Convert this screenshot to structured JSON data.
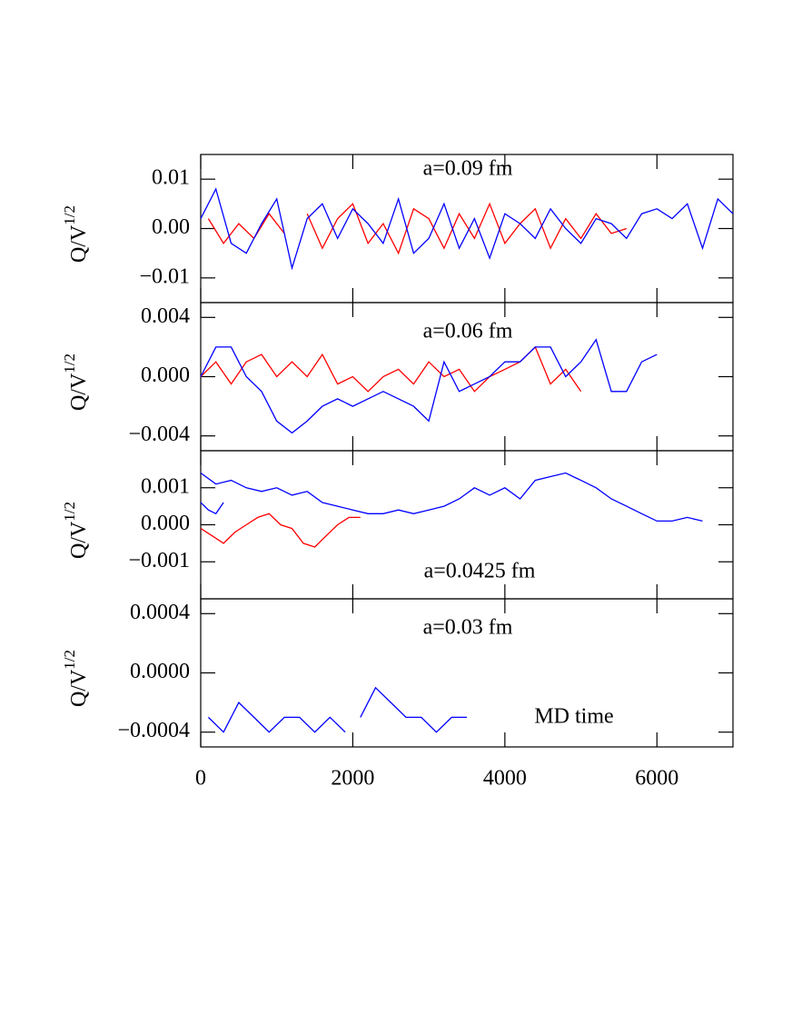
{
  "chart_data": [
    {
      "type": "line",
      "annotation": "a=0.09 fm",
      "ylabel": {
        "base": "Q/V",
        "sup": "1/2"
      },
      "xlim": [
        0,
        7000
      ],
      "xticks": [
        0,
        2000,
        4000,
        6000
      ],
      "ylim": [
        -0.015,
        0.015
      ],
      "yticks": [
        0.01,
        {
          "value": 0,
          "label": "0.00"
        },
        {
          "value": -0.01,
          "label": "−0.01"
        }
      ],
      "series": [
        {
          "color": "#ff0000",
          "x": [
            100,
            300,
            500,
            700,
            900,
            1100,
            1250,
            1400,
            1600,
            1800,
            2000,
            2200,
            2400,
            2600,
            2800,
            3000,
            3200,
            3400,
            3600,
            3800,
            4000,
            4200,
            4400,
            4600,
            4800,
            5000,
            5200,
            5400,
            5600
          ],
          "values": [
            0.002,
            -0.003,
            0.001,
            -0.002,
            0.003,
            -0.001,
            null,
            0.003,
            -0.004,
            0.002,
            0.005,
            -0.003,
            0.001,
            -0.005,
            0.004,
            0.002,
            -0.004,
            0.003,
            -0.002,
            0.005,
            -0.003,
            0.001,
            0.004,
            -0.004,
            0.002,
            -0.002,
            0.003,
            -0.001,
            0.0
          ]
        },
        {
          "color": "#0000ff",
          "x": [
            0,
            200,
            400,
            600,
            800,
            1000,
            1200,
            1400,
            1600,
            1800,
            2000,
            2200,
            2400,
            2600,
            2800,
            3000,
            3200,
            3400,
            3600,
            3800,
            4000,
            4200,
            4400,
            4600,
            4800,
            5000,
            5200,
            5400,
            5600,
            5800,
            6000,
            6200,
            6400,
            6600,
            6800,
            7000
          ],
          "values": [
            0.002,
            0.008,
            -0.003,
            -0.005,
            0.001,
            0.006,
            -0.008,
            0.002,
            0.005,
            -0.002,
            0.004,
            0.001,
            -0.003,
            0.006,
            -0.005,
            -0.002,
            0.005,
            -0.004,
            0.002,
            -0.006,
            0.003,
            0.001,
            -0.002,
            0.004,
            0.0,
            -0.003,
            0.002,
            0.001,
            -0.002,
            0.003,
            0.004,
            0.002,
            0.005,
            -0.004,
            0.006,
            0.003
          ]
        }
      ]
    },
    {
      "type": "line",
      "annotation": "a=0.06 fm",
      "ylabel": {
        "base": "Q/V",
        "sup": "1/2"
      },
      "xlim": [
        0,
        7000
      ],
      "xticks": [
        0,
        2000,
        4000,
        6000
      ],
      "ylim": [
        -0.005,
        0.005
      ],
      "yticks": [
        0.004,
        {
          "value": 0,
          "label": "0.000"
        },
        {
          "value": -0.004,
          "label": "−0.004"
        }
      ],
      "series": [
        {
          "color": "#ff0000",
          "x": [
            0,
            200,
            400,
            600,
            800,
            1000,
            1200,
            1400,
            1600,
            1800,
            2000,
            2200,
            2400,
            2600,
            2800,
            3000,
            3200,
            3400,
            3600,
            3800,
            4000,
            4200,
            4400,
            4600,
            4800,
            5000
          ],
          "values": [
            0.0,
            0.001,
            -0.0005,
            0.001,
            0.0015,
            0.0,
            0.001,
            0.0,
            0.0015,
            -0.0005,
            0.0,
            -0.001,
            0.0,
            0.0005,
            -0.0005,
            0.001,
            0.0,
            0.0005,
            -0.001,
            0.0,
            0.0005,
            0.001,
            0.002,
            -0.0005,
            0.0005,
            -0.001
          ]
        },
        {
          "color": "#0000ff",
          "x": [
            0,
            200,
            400,
            600,
            800,
            1000,
            1200,
            1400,
            1600,
            1800,
            2000,
            2200,
            2400,
            2600,
            2800,
            3000,
            3200,
            3400,
            3600,
            3800,
            4000,
            4200,
            4400,
            4600,
            4800,
            5000,
            5200,
            5400,
            5600,
            5800,
            6000
          ],
          "values": [
            0.0,
            0.002,
            0.002,
            0.0,
            -0.001,
            -0.003,
            -0.0038,
            -0.003,
            -0.002,
            -0.0015,
            -0.002,
            -0.0015,
            -0.001,
            -0.0015,
            -0.002,
            -0.003,
            0.001,
            -0.001,
            -0.0005,
            0.0,
            0.001,
            0.001,
            0.002,
            0.002,
            0.0,
            0.001,
            0.0025,
            -0.001,
            -0.001,
            0.001,
            0.0015
          ]
        }
      ]
    },
    {
      "type": "line",
      "annotation": "a=0.0425 fm",
      "ylabel": {
        "base": "Q/V",
        "sup": "1/2"
      },
      "xlim": [
        0,
        7000
      ],
      "xticks": [
        0,
        2000,
        4000,
        6000
      ],
      "ylim": [
        -0.002,
        0.002
      ],
      "yticks": [
        0.001,
        {
          "value": 0,
          "label": "0.000"
        },
        {
          "value": -0.001,
          "label": "−0.001"
        }
      ],
      "series": [
        {
          "color": "#ff0000",
          "x": [
            0,
            150,
            300,
            450,
            600,
            750,
            900,
            1050,
            1200,
            1350,
            1500,
            1650,
            1800,
            1950,
            2100
          ],
          "values": [
            -0.0001,
            -0.0003,
            -0.0005,
            -0.0002,
            0.0,
            0.0002,
            0.0003,
            0.0,
            -0.0001,
            -0.0005,
            -0.0006,
            -0.0003,
            0.0,
            0.0002,
            0.0002
          ]
        },
        {
          "color": "#0000ff",
          "x": [
            0,
            200,
            400,
            600,
            800,
            1000,
            1200,
            1400,
            1600,
            1800,
            2000,
            2200,
            2400,
            2600,
            2800,
            3000,
            3200,
            3400,
            3600,
            3800,
            4000,
            4200,
            4400,
            4600,
            4800,
            5000,
            5200,
            5400,
            5600,
            5800,
            6000,
            6200,
            6400,
            6600
          ],
          "values": [
            0.0014,
            0.0011,
            0.0012,
            0.001,
            0.0009,
            0.001,
            0.0008,
            0.0009,
            0.0006,
            0.0005,
            0.0004,
            0.0003,
            0.0003,
            0.0004,
            0.0003,
            0.0004,
            0.0005,
            0.0007,
            0.001,
            0.0008,
            0.001,
            0.0007,
            0.0012,
            0.0013,
            0.0014,
            0.0012,
            0.001,
            0.0007,
            0.0005,
            0.0003,
            0.0001,
            0.0001,
            0.0002,
            0.0001
          ]
        },
        {
          "color": "#0000ff",
          "x": [
            0,
            100,
            200,
            300
          ],
          "values": [
            0.0006,
            0.0004,
            0.0003,
            0.0006
          ]
        }
      ]
    },
    {
      "type": "line",
      "annotation": "a=0.03 fm",
      "xlabel": "MD time",
      "ylabel": {
        "base": "Q/V",
        "sup": "1/2"
      },
      "xlim": [
        0,
        7000
      ],
      "xticks": [
        0,
        2000,
        4000,
        6000
      ],
      "ylim": [
        -0.0005,
        0.0005
      ],
      "yticks": [
        0.0004,
        {
          "value": 0,
          "label": "0.0000"
        },
        {
          "value": -0.0004,
          "label": "−0.0004"
        }
      ],
      "series": [
        {
          "color": "#0000ff",
          "x": [
            100,
            300,
            500,
            700,
            900,
            1100,
            1300,
            1500,
            1700,
            1900,
            2000,
            2100,
            2300,
            2500,
            2700,
            2900,
            3100,
            3300,
            3500
          ],
          "values": [
            -0.0003,
            -0.0004,
            -0.0002,
            -0.0003,
            -0.0004,
            -0.0003,
            -0.0003,
            -0.0004,
            -0.0003,
            -0.0004,
            null,
            -0.0003,
            -0.0001,
            -0.0002,
            -0.0003,
            -0.0003,
            -0.0004,
            -0.0003,
            -0.0003
          ]
        }
      ]
    }
  ]
}
